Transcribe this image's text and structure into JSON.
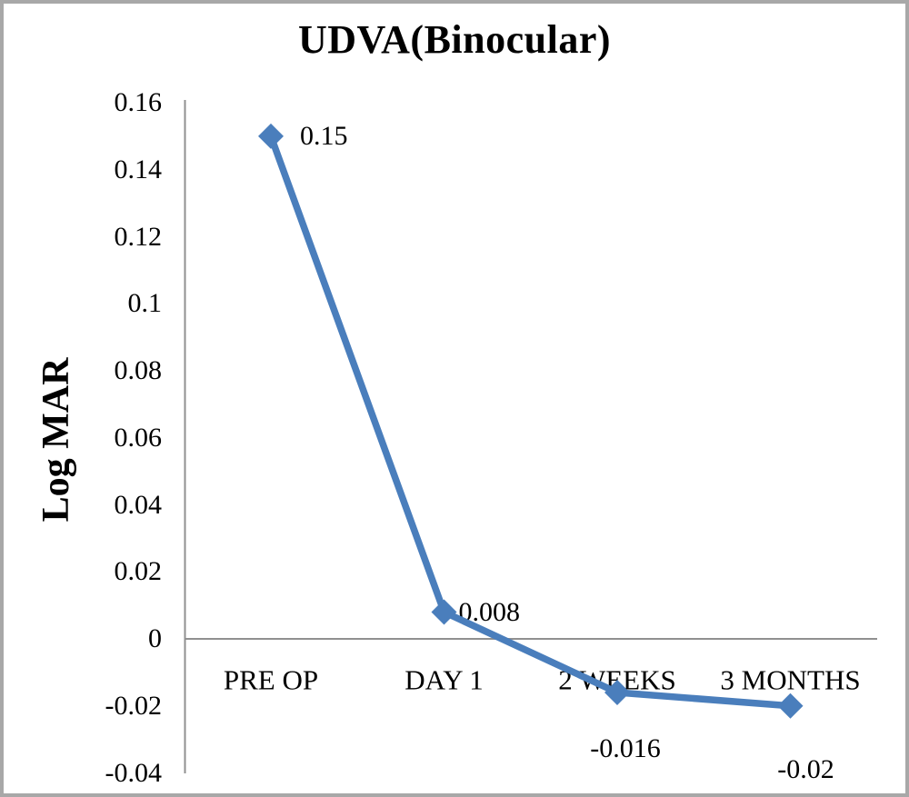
{
  "chart_data": {
    "type": "line",
    "title": "UDVA(Binocular)",
    "xlabel": "",
    "ylabel": "Log MAR",
    "categories": [
      "PRE OP",
      "DAY 1",
      "2 WEEKS",
      "3 MONTHS"
    ],
    "values": [
      0.15,
      0.008,
      -0.016,
      -0.02
    ],
    "point_labels": [
      "0.15",
      "0.008",
      "-0.016",
      "-0.02"
    ],
    "yticks": [
      0.16,
      0.14,
      0.12,
      0.1,
      0.08,
      0.06,
      0.04,
      0.02,
      0,
      -0.02,
      -0.04
    ],
    "ytick_labels": [
      "0.16",
      "0.14",
      "0.12",
      "0.1",
      "0.08",
      "0.06",
      "0.04",
      "0.02",
      "0",
      "-0.02",
      "-0.04"
    ],
    "ylim": [
      -0.04,
      0.16
    ],
    "grid": false,
    "legend": "none",
    "marker": "diamond",
    "series_color": "#4a7ebc",
    "axis_color": "#909090"
  }
}
